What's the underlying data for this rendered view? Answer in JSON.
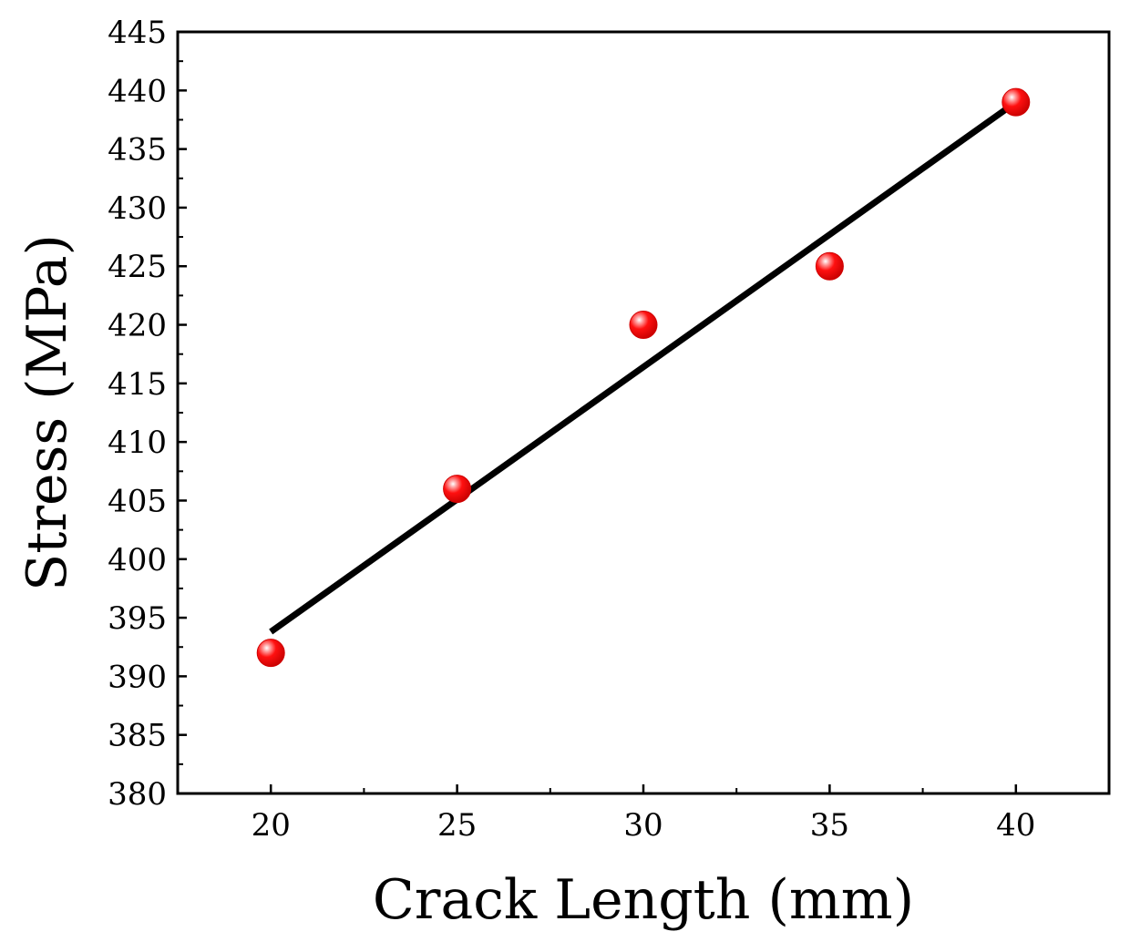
{
  "chart_data": {
    "type": "scatter",
    "title": "",
    "xlabel": "Crack Length (mm)",
    "ylabel": "Stress (MPa)",
    "xlim": [
      17.5,
      42.5
    ],
    "ylim": [
      380,
      445
    ],
    "x_ticks": [
      20,
      25,
      30,
      35,
      40
    ],
    "x_tick_labels": [
      "20",
      "25",
      "30",
      "35",
      "40"
    ],
    "y_ticks": [
      380,
      385,
      390,
      395,
      400,
      405,
      410,
      415,
      420,
      425,
      430,
      435,
      440,
      445
    ],
    "y_tick_labels": [
      "380",
      "385",
      "390",
      "395",
      "400",
      "405",
      "410",
      "415",
      "420",
      "425",
      "430",
      "435",
      "440",
      "445"
    ],
    "grid": false,
    "legend": "none",
    "series": [
      {
        "kind": "points",
        "x": [
          20,
          25,
          30,
          35,
          40
        ],
        "y": [
          392,
          406,
          420,
          425,
          439
        ],
        "color": "#ff0000"
      },
      {
        "kind": "fit-line",
        "x": [
          20,
          40
        ],
        "y": [
          393.8,
          439
        ],
        "color": "#000000"
      }
    ]
  }
}
